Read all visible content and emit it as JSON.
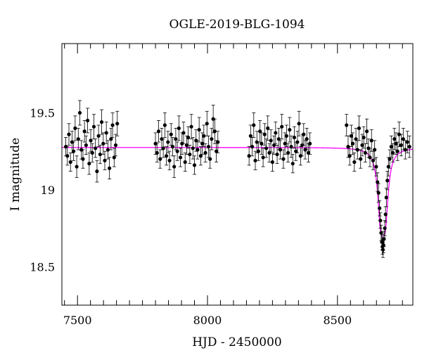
{
  "chart_data": {
    "type": "scatter",
    "title": "OGLE-2019-BLG-1094",
    "xlabel": "HJD - 2450000",
    "ylabel": "I magnitude",
    "xlim": [
      7440,
      8790
    ],
    "ylim": [
      19.95,
      18.25
    ],
    "y_inverted": true,
    "x_ticks": [
      7500,
      8000,
      8500
    ],
    "y_ticks": [
      18.5,
      19,
      19.5
    ],
    "grid": false,
    "legend": "none",
    "colors": {
      "points": "#000000",
      "model": "#ff00ff",
      "axes": "#000000"
    },
    "model": {
      "name": "",
      "baseline_mag": 19.275,
      "peak_time": 8675,
      "peak_mag": 18.7,
      "width_days": 16
    },
    "series": [
      {
        "segment": "season-1",
        "x": [
          7455,
          7461,
          7467,
          7473,
          7479,
          7485,
          7491,
          7497,
          7503,
          7509,
          7515,
          7521,
          7527,
          7533,
          7539,
          7545,
          7551,
          7557,
          7563,
          7569,
          7575,
          7581,
          7587,
          7593,
          7599,
          7605,
          7611,
          7617,
          7623,
          7629,
          7635,
          7641,
          7647,
          7653
        ],
        "y": [
          19.28,
          19.22,
          19.36,
          19.18,
          19.31,
          19.25,
          19.4,
          19.15,
          19.33,
          19.5,
          19.26,
          19.2,
          19.38,
          19.29,
          19.45,
          19.17,
          19.32,
          19.24,
          19.41,
          19.27,
          19.12,
          19.35,
          19.23,
          19.44,
          19.3,
          19.19,
          19.37,
          19.26,
          19.14,
          19.33,
          19.42,
          19.21,
          19.29,
          19.43
        ],
        "err": [
          0.06,
          0.06,
          0.07,
          0.06,
          0.07,
          0.06,
          0.08,
          0.07,
          0.07,
          0.08,
          0.06,
          0.06,
          0.07,
          0.06,
          0.08,
          0.07,
          0.07,
          0.06,
          0.08,
          0.06,
          0.07,
          0.07,
          0.06,
          0.08,
          0.07,
          0.06,
          0.07,
          0.06,
          0.07,
          0.07,
          0.08,
          0.06,
          0.07,
          0.08
        ]
      },
      {
        "segment": "season-2",
        "x": [
          7800,
          7806,
          7812,
          7818,
          7824,
          7830,
          7836,
          7842,
          7848,
          7854,
          7860,
          7866,
          7872,
          7878,
          7884,
          7890,
          7896,
          7902,
          7908,
          7914,
          7920,
          7926,
          7932,
          7938,
          7944,
          7950,
          7956,
          7962,
          7968,
          7974,
          7980,
          7986,
          7992,
          7998,
          8004,
          8010,
          8016,
          8022,
          8028,
          8034,
          8040
        ],
        "y": [
          19.3,
          19.24,
          19.38,
          19.2,
          19.33,
          19.27,
          19.42,
          19.22,
          19.31,
          19.19,
          19.36,
          19.28,
          19.15,
          19.33,
          19.25,
          19.4,
          19.21,
          19.3,
          19.37,
          19.18,
          19.29,
          19.34,
          19.23,
          19.41,
          19.27,
          19.16,
          19.32,
          19.26,
          19.39,
          19.22,
          19.3,
          19.35,
          19.24,
          19.43,
          19.28,
          19.2,
          19.33,
          19.46,
          19.38,
          19.25,
          19.31
        ],
        "err": [
          0.07,
          0.06,
          0.07,
          0.06,
          0.07,
          0.06,
          0.08,
          0.06,
          0.07,
          0.06,
          0.07,
          0.06,
          0.07,
          0.07,
          0.06,
          0.08,
          0.06,
          0.07,
          0.07,
          0.06,
          0.06,
          0.07,
          0.06,
          0.08,
          0.07,
          0.06,
          0.07,
          0.06,
          0.08,
          0.06,
          0.07,
          0.07,
          0.06,
          0.08,
          0.07,
          0.06,
          0.07,
          0.09,
          0.08,
          0.07,
          0.07
        ]
      },
      {
        "segment": "season-3",
        "x": [
          8160,
          8166,
          8172,
          8178,
          8184,
          8190,
          8196,
          8202,
          8208,
          8214,
          8220,
          8226,
          8232,
          8238,
          8244,
          8250,
          8256,
          8262,
          8268,
          8274,
          8280,
          8286,
          8292,
          8298,
          8304,
          8310,
          8316,
          8322,
          8328,
          8334,
          8340,
          8346,
          8352,
          8358,
          8364,
          8370,
          8376,
          8382,
          8388,
          8394
        ],
        "y": [
          19.22,
          19.35,
          19.28,
          19.42,
          19.19,
          19.31,
          19.25,
          19.38,
          19.3,
          19.21,
          19.36,
          19.27,
          19.4,
          19.24,
          19.32,
          19.18,
          19.29,
          19.37,
          19.23,
          19.33,
          19.26,
          19.41,
          19.2,
          19.3,
          19.35,
          19.24,
          19.39,
          19.28,
          19.17,
          19.34,
          19.25,
          19.31,
          19.43,
          19.22,
          19.29,
          19.36,
          19.26,
          19.33,
          19.24,
          19.3
        ],
        "err": [
          0.06,
          0.07,
          0.06,
          0.08,
          0.06,
          0.07,
          0.06,
          0.07,
          0.07,
          0.06,
          0.07,
          0.06,
          0.08,
          0.06,
          0.07,
          0.06,
          0.06,
          0.07,
          0.06,
          0.07,
          0.06,
          0.08,
          0.06,
          0.07,
          0.07,
          0.06,
          0.08,
          0.07,
          0.06,
          0.07,
          0.06,
          0.07,
          0.08,
          0.06,
          0.07,
          0.07,
          0.06,
          0.07,
          0.06,
          0.07
        ]
      },
      {
        "segment": "season-4",
        "x": [
          8535,
          8541,
          8547,
          8553,
          8559,
          8565,
          8571,
          8577,
          8583,
          8589,
          8595,
          8601,
          8607,
          8613,
          8619,
          8625,
          8631,
          8637,
          8643,
          8649,
          8654,
          8658,
          8662,
          8665,
          8668,
          8671,
          8673,
          8675,
          8677,
          8679,
          8682,
          8685,
          8688,
          8692,
          8696,
          8701,
          8707,
          8713,
          8719,
          8725,
          8731,
          8737,
          8745,
          8753,
          8761,
          8769,
          8777
        ],
        "y": [
          19.42,
          19.28,
          19.22,
          19.35,
          19.3,
          19.18,
          19.33,
          19.26,
          19.4,
          19.2,
          19.29,
          19.34,
          19.24,
          19.38,
          19.27,
          19.21,
          19.32,
          19.19,
          19.26,
          19.15,
          19.05,
          18.98,
          18.88,
          18.8,
          18.72,
          18.66,
          18.63,
          18.61,
          18.64,
          18.68,
          18.75,
          18.84,
          18.95,
          19.06,
          19.15,
          19.2,
          19.28,
          19.24,
          19.33,
          19.3,
          19.25,
          19.36,
          19.29,
          19.33,
          19.26,
          19.31,
          19.28
        ],
        "err": [
          0.07,
          0.07,
          0.06,
          0.07,
          0.07,
          0.06,
          0.07,
          0.06,
          0.08,
          0.06,
          0.07,
          0.07,
          0.06,
          0.08,
          0.06,
          0.06,
          0.07,
          0.06,
          0.06,
          0.06,
          0.06,
          0.06,
          0.05,
          0.05,
          0.05,
          0.05,
          0.05,
          0.05,
          0.05,
          0.05,
          0.05,
          0.05,
          0.06,
          0.06,
          0.06,
          0.06,
          0.07,
          0.06,
          0.07,
          0.07,
          0.06,
          0.08,
          0.07,
          0.07,
          0.06,
          0.07,
          0.07
        ]
      }
    ]
  }
}
